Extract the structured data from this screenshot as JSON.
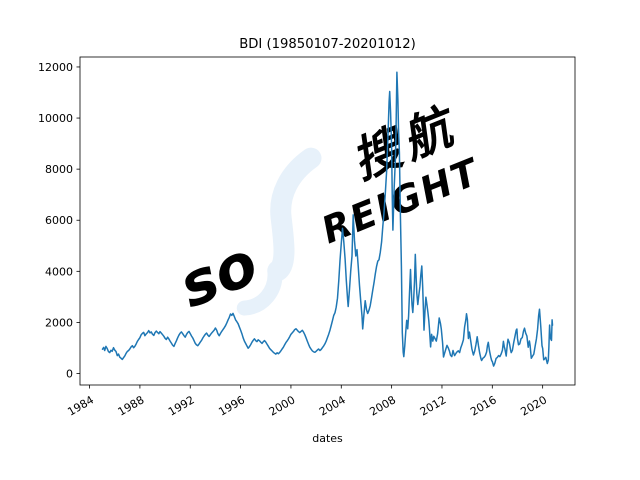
{
  "title": "BDI (19850107-20201012)",
  "xlabel": "dates",
  "watermark": {
    "so": "so",
    "freight_rest": "REIGHT",
    "chinese": "搜航",
    "gray": "#f1f1f1",
    "blue": "#e7f1fa"
  },
  "chart_data": {
    "type": "line",
    "series_name": "BDI",
    "title": "BDI (19850107-20201012)",
    "xlabel": "dates",
    "ylabel": "",
    "line_color": "#1f77b4",
    "grid": false,
    "legend": "none",
    "x_ticks": [
      1984,
      1988,
      1992,
      1996,
      2000,
      2004,
      2008,
      2012,
      2016,
      2020
    ],
    "y_ticks": [
      0,
      2000,
      4000,
      6000,
      8000,
      10000,
      12000
    ],
    "xlim": [
      1983.24,
      2022.57
    ],
    "ylim": [
      -450,
      12390
    ],
    "points": [
      [
        1985.03,
        950
      ],
      [
        1985.12,
        1020
      ],
      [
        1985.2,
        900
      ],
      [
        1985.3,
        1060
      ],
      [
        1985.4,
        980
      ],
      [
        1985.5,
        860
      ],
      [
        1985.6,
        820
      ],
      [
        1985.7,
        910
      ],
      [
        1985.8,
        870
      ],
      [
        1985.9,
        1010
      ],
      [
        1986.0,
        920
      ],
      [
        1986.1,
        860
      ],
      [
        1986.2,
        700
      ],
      [
        1986.3,
        760
      ],
      [
        1986.4,
        640
      ],
      [
        1986.5,
        600
      ],
      [
        1986.6,
        554
      ],
      [
        1986.7,
        620
      ],
      [
        1986.8,
        690
      ],
      [
        1986.9,
        790
      ],
      [
        1987.0,
        860
      ],
      [
        1987.1,
        900
      ],
      [
        1987.2,
        960
      ],
      [
        1987.3,
        1040
      ],
      [
        1987.4,
        1090
      ],
      [
        1987.5,
        1010
      ],
      [
        1987.6,
        1070
      ],
      [
        1987.7,
        1150
      ],
      [
        1987.8,
        1260
      ],
      [
        1987.9,
        1330
      ],
      [
        1988.0,
        1400
      ],
      [
        1988.1,
        1520
      ],
      [
        1988.2,
        1570
      ],
      [
        1988.3,
        1610
      ],
      [
        1988.4,
        1480
      ],
      [
        1988.5,
        1550
      ],
      [
        1988.6,
        1600
      ],
      [
        1988.7,
        1680
      ],
      [
        1988.8,
        1590
      ],
      [
        1988.9,
        1630
      ],
      [
        1989.0,
        1540
      ],
      [
        1989.1,
        1490
      ],
      [
        1989.2,
        1600
      ],
      [
        1989.3,
        1660
      ],
      [
        1989.4,
        1610
      ],
      [
        1989.5,
        1560
      ],
      [
        1989.6,
        1640
      ],
      [
        1989.7,
        1580
      ],
      [
        1989.8,
        1520
      ],
      [
        1989.9,
        1460
      ],
      [
        1990.0,
        1380
      ],
      [
        1990.1,
        1330
      ],
      [
        1990.2,
        1420
      ],
      [
        1990.3,
        1350
      ],
      [
        1990.4,
        1270
      ],
      [
        1990.5,
        1190
      ],
      [
        1990.6,
        1110
      ],
      [
        1990.7,
        1060
      ],
      [
        1990.8,
        1170
      ],
      [
        1990.9,
        1280
      ],
      [
        1991.0,
        1400
      ],
      [
        1991.1,
        1500
      ],
      [
        1991.2,
        1580
      ],
      [
        1991.3,
        1630
      ],
      [
        1991.4,
        1560
      ],
      [
        1991.5,
        1480
      ],
      [
        1991.6,
        1420
      ],
      [
        1991.7,
        1530
      ],
      [
        1991.8,
        1600
      ],
      [
        1991.9,
        1650
      ],
      [
        1992.0,
        1560
      ],
      [
        1992.1,
        1470
      ],
      [
        1992.2,
        1390
      ],
      [
        1992.3,
        1290
      ],
      [
        1992.4,
        1180
      ],
      [
        1992.5,
        1120
      ],
      [
        1992.6,
        1090
      ],
      [
        1992.7,
        1160
      ],
      [
        1992.8,
        1230
      ],
      [
        1992.9,
        1300
      ],
      [
        1993.0,
        1390
      ],
      [
        1993.1,
        1470
      ],
      [
        1993.2,
        1540
      ],
      [
        1993.3,
        1580
      ],
      [
        1993.4,
        1500
      ],
      [
        1993.5,
        1450
      ],
      [
        1993.6,
        1520
      ],
      [
        1993.7,
        1580
      ],
      [
        1993.8,
        1640
      ],
      [
        1993.9,
        1700
      ],
      [
        1994.0,
        1780
      ],
      [
        1994.1,
        1690
      ],
      [
        1994.2,
        1560
      ],
      [
        1994.3,
        1480
      ],
      [
        1994.4,
        1570
      ],
      [
        1994.5,
        1650
      ],
      [
        1994.6,
        1720
      ],
      [
        1994.7,
        1790
      ],
      [
        1994.8,
        1870
      ],
      [
        1994.9,
        1980
      ],
      [
        1995.0,
        2090
      ],
      [
        1995.1,
        2200
      ],
      [
        1995.2,
        2330
      ],
      [
        1995.3,
        2280
      ],
      [
        1995.4,
        2352
      ],
      [
        1995.5,
        2230
      ],
      [
        1995.6,
        2100
      ],
      [
        1995.7,
        2030
      ],
      [
        1995.8,
        1950
      ],
      [
        1995.9,
        1830
      ],
      [
        1996.0,
        1700
      ],
      [
        1996.1,
        1560
      ],
      [
        1996.2,
        1400
      ],
      [
        1996.3,
        1270
      ],
      [
        1996.4,
        1180
      ],
      [
        1996.5,
        1080
      ],
      [
        1996.6,
        990
      ],
      [
        1996.7,
        1050
      ],
      [
        1996.8,
        1130
      ],
      [
        1996.9,
        1220
      ],
      [
        1997.0,
        1300
      ],
      [
        1997.1,
        1360
      ],
      [
        1997.2,
        1290
      ],
      [
        1997.3,
        1250
      ],
      [
        1997.4,
        1320
      ],
      [
        1997.5,
        1280
      ],
      [
        1997.6,
        1230
      ],
      [
        1997.7,
        1180
      ],
      [
        1997.8,
        1240
      ],
      [
        1997.9,
        1290
      ],
      [
        1998.0,
        1230
      ],
      [
        1998.1,
        1150
      ],
      [
        1998.2,
        1070
      ],
      [
        1998.3,
        990
      ],
      [
        1998.4,
        930
      ],
      [
        1998.5,
        880
      ],
      [
        1998.6,
        830
      ],
      [
        1998.7,
        790
      ],
      [
        1998.8,
        760
      ],
      [
        1998.9,
        810
      ],
      [
        1999.0,
        775
      ],
      [
        1999.1,
        820
      ],
      [
        1999.2,
        890
      ],
      [
        1999.3,
        960
      ],
      [
        1999.4,
        1030
      ],
      [
        1999.5,
        1120
      ],
      [
        1999.6,
        1210
      ],
      [
        1999.7,
        1280
      ],
      [
        1999.8,
        1350
      ],
      [
        1999.9,
        1440
      ],
      [
        2000.0,
        1530
      ],
      [
        2000.1,
        1590
      ],
      [
        2000.2,
        1650
      ],
      [
        2000.3,
        1720
      ],
      [
        2000.4,
        1750
      ],
      [
        2000.5,
        1700
      ],
      [
        2000.6,
        1640
      ],
      [
        2000.7,
        1600
      ],
      [
        2000.8,
        1650
      ],
      [
        2000.9,
        1690
      ],
      [
        2001.0,
        1620
      ],
      [
        2001.1,
        1520
      ],
      [
        2001.2,
        1400
      ],
      [
        2001.3,
        1270
      ],
      [
        2001.4,
        1140
      ],
      [
        2001.5,
        1030
      ],
      [
        2001.6,
        950
      ],
      [
        2001.7,
        890
      ],
      [
        2001.8,
        850
      ],
      [
        2001.9,
        830
      ],
      [
        2002.0,
        870
      ],
      [
        2002.1,
        920
      ],
      [
        2002.2,
        960
      ],
      [
        2002.3,
        900
      ],
      [
        2002.4,
        940
      ],
      [
        2002.5,
        1010
      ],
      [
        2002.6,
        1080
      ],
      [
        2002.7,
        1160
      ],
      [
        2002.8,
        1270
      ],
      [
        2002.9,
        1400
      ],
      [
        2003.0,
        1540
      ],
      [
        2003.1,
        1700
      ],
      [
        2003.2,
        1880
      ],
      [
        2003.3,
        2080
      ],
      [
        2003.4,
        2270
      ],
      [
        2003.5,
        2380
      ],
      [
        2003.6,
        2600
      ],
      [
        2003.7,
        2950
      ],
      [
        2003.8,
        3650
      ],
      [
        2003.9,
        4420
      ],
      [
        2004.0,
        5100
      ],
      [
        2004.1,
        5681
      ],
      [
        2004.2,
        5150
      ],
      [
        2004.3,
        4480
      ],
      [
        2004.4,
        3650
      ],
      [
        2004.5,
        2900
      ],
      [
        2004.55,
        2622
      ],
      [
        2004.65,
        3300
      ],
      [
        2004.75,
        4000
      ],
      [
        2004.85,
        4600
      ],
      [
        2004.95,
        6208
      ],
      [
        2005.05,
        5200
      ],
      [
        2005.15,
        4600
      ],
      [
        2005.25,
        4850
      ],
      [
        2005.35,
        4150
      ],
      [
        2005.45,
        3450
      ],
      [
        2005.55,
        2800
      ],
      [
        2005.65,
        2250
      ],
      [
        2005.7,
        1747
      ],
      [
        2005.8,
        2300
      ],
      [
        2005.9,
        2850
      ],
      [
        2006.0,
        2500
      ],
      [
        2006.1,
        2350
      ],
      [
        2006.2,
        2480
      ],
      [
        2006.3,
        2650
      ],
      [
        2006.4,
        2950
      ],
      [
        2006.5,
        3250
      ],
      [
        2006.6,
        3550
      ],
      [
        2006.7,
        3900
      ],
      [
        2006.8,
        4180
      ],
      [
        2006.9,
        4400
      ],
      [
        2007.0,
        4450
      ],
      [
        2007.1,
        4750
      ],
      [
        2007.2,
        5150
      ],
      [
        2007.3,
        5750
      ],
      [
        2007.4,
        6350
      ],
      [
        2007.5,
        7050
      ],
      [
        2007.6,
        7900
      ],
      [
        2007.7,
        9100
      ],
      [
        2007.8,
        10650
      ],
      [
        2007.85,
        11039
      ],
      [
        2007.92,
        10200
      ],
      [
        2008.0,
        8900
      ],
      [
        2008.05,
        6800
      ],
      [
        2008.1,
        5615
      ],
      [
        2008.2,
        7200
      ],
      [
        2008.3,
        8400
      ],
      [
        2008.35,
        9450
      ],
      [
        2008.42,
        11793
      ],
      [
        2008.5,
        10700
      ],
      [
        2008.55,
        9600
      ],
      [
        2008.62,
        8650
      ],
      [
        2008.7,
        6200
      ],
      [
        2008.78,
        4200
      ],
      [
        2008.85,
        1600
      ],
      [
        2008.92,
        830
      ],
      [
        2008.97,
        663
      ],
      [
        2009.05,
        1100
      ],
      [
        2009.12,
        1600
      ],
      [
        2009.2,
        2080
      ],
      [
        2009.28,
        1750
      ],
      [
        2009.35,
        2250
      ],
      [
        2009.42,
        3150
      ],
      [
        2009.5,
        4070
      ],
      [
        2009.55,
        3450
      ],
      [
        2009.62,
        2700
      ],
      [
        2009.68,
        2388
      ],
      [
        2009.75,
        2850
      ],
      [
        2009.82,
        3600
      ],
      [
        2009.88,
        4661
      ],
      [
        2009.95,
        3700
      ],
      [
        2010.0,
        3140
      ],
      [
        2010.08,
        2700
      ],
      [
        2010.16,
        3050
      ],
      [
        2010.25,
        3400
      ],
      [
        2010.32,
        3850
      ],
      [
        2010.4,
        4209
      ],
      [
        2010.47,
        3380
      ],
      [
        2010.53,
        2400
      ],
      [
        2010.57,
        1700
      ],
      [
        2010.65,
        2460
      ],
      [
        2010.72,
        2988
      ],
      [
        2010.8,
        2700
      ],
      [
        2010.88,
        2400
      ],
      [
        2010.95,
        2070
      ],
      [
        2011.0,
        1773
      ],
      [
        2011.1,
        1043
      ],
      [
        2011.18,
        1530
      ],
      [
        2011.27,
        1269
      ],
      [
        2011.35,
        1458
      ],
      [
        2011.45,
        1370
      ],
      [
        2011.55,
        1270
      ],
      [
        2011.65,
        1550
      ],
      [
        2011.78,
        2173
      ],
      [
        2011.88,
        1950
      ],
      [
        2011.95,
        1738
      ],
      [
        2012.05,
        1200
      ],
      [
        2012.12,
        647
      ],
      [
        2012.2,
        780
      ],
      [
        2012.3,
        940
      ],
      [
        2012.4,
        1100
      ],
      [
        2012.5,
        1000
      ],
      [
        2012.6,
        870
      ],
      [
        2012.68,
        717
      ],
      [
        2012.78,
        661
      ],
      [
        2012.88,
        900
      ],
      [
        2012.95,
        780
      ],
      [
        2013.0,
        699
      ],
      [
        2013.1,
        780
      ],
      [
        2013.2,
        850
      ],
      [
        2013.3,
        890
      ],
      [
        2013.4,
        820
      ],
      [
        2013.5,
        1010
      ],
      [
        2013.6,
        1150
      ],
      [
        2013.7,
        1320
      ],
      [
        2013.8,
        1820
      ],
      [
        2013.9,
        2120
      ],
      [
        2013.95,
        2337
      ],
      [
        2014.02,
        2113
      ],
      [
        2014.1,
        1370
      ],
      [
        2014.18,
        1621
      ],
      [
        2014.28,
        1280
      ],
      [
        2014.38,
        960
      ],
      [
        2014.5,
        723
      ],
      [
        2014.6,
        880
      ],
      [
        2014.7,
        1120
      ],
      [
        2014.8,
        1437
      ],
      [
        2014.9,
        1080
      ],
      [
        2015.0,
        800
      ],
      [
        2015.1,
        570
      ],
      [
        2015.15,
        509
      ],
      [
        2015.25,
        600
      ],
      [
        2015.35,
        634
      ],
      [
        2015.45,
        710
      ],
      [
        2015.55,
        840
      ],
      [
        2015.62,
        1100
      ],
      [
        2015.68,
        1222
      ],
      [
        2015.78,
        890
      ],
      [
        2015.88,
        640
      ],
      [
        2015.95,
        500
      ],
      [
        2016.0,
        473
      ],
      [
        2016.1,
        290
      ],
      [
        2016.2,
        400
      ],
      [
        2016.3,
        590
      ],
      [
        2016.4,
        630
      ],
      [
        2016.5,
        700
      ],
      [
        2016.6,
        660
      ],
      [
        2016.7,
        760
      ],
      [
        2016.8,
        910
      ],
      [
        2016.88,
        1257
      ],
      [
        2016.95,
        1040
      ],
      [
        2017.0,
        961
      ],
      [
        2017.1,
        685
      ],
      [
        2017.18,
        1100
      ],
      [
        2017.25,
        1338
      ],
      [
        2017.35,
        1210
      ],
      [
        2017.45,
        920
      ],
      [
        2017.5,
        818
      ],
      [
        2017.6,
        910
      ],
      [
        2017.7,
        1210
      ],
      [
        2017.8,
        1460
      ],
      [
        2017.9,
        1700
      ],
      [
        2017.95,
        1743
      ],
      [
        2018.0,
        1366
      ],
      [
        2018.08,
        1125
      ],
      [
        2018.18,
        1160
      ],
      [
        2018.28,
        1360
      ],
      [
        2018.38,
        1410
      ],
      [
        2018.48,
        1660
      ],
      [
        2018.56,
        1774
      ],
      [
        2018.65,
        1579
      ],
      [
        2018.75,
        1470
      ],
      [
        2018.85,
        1031
      ],
      [
        2018.95,
        1271
      ],
      [
        2019.0,
        1100
      ],
      [
        2019.1,
        595
      ],
      [
        2019.2,
        685
      ],
      [
        2019.3,
        760
      ],
      [
        2019.4,
        1060
      ],
      [
        2019.5,
        1350
      ],
      [
        2019.6,
        1740
      ],
      [
        2019.68,
        2250
      ],
      [
        2019.75,
        2518
      ],
      [
        2019.85,
        1823
      ],
      [
        2019.95,
        1090
      ],
      [
        2020.0,
        976
      ],
      [
        2020.08,
        535
      ],
      [
        2020.17,
        580
      ],
      [
        2020.25,
        635
      ],
      [
        2020.37,
        393
      ],
      [
        2020.45,
        520
      ],
      [
        2020.5,
        1050
      ],
      [
        2020.55,
        1894
      ],
      [
        2020.6,
        1500
      ],
      [
        2020.65,
        1350
      ],
      [
        2020.7,
        1296
      ],
      [
        2020.75,
        2097
      ],
      [
        2020.78,
        1892
      ]
    ]
  }
}
